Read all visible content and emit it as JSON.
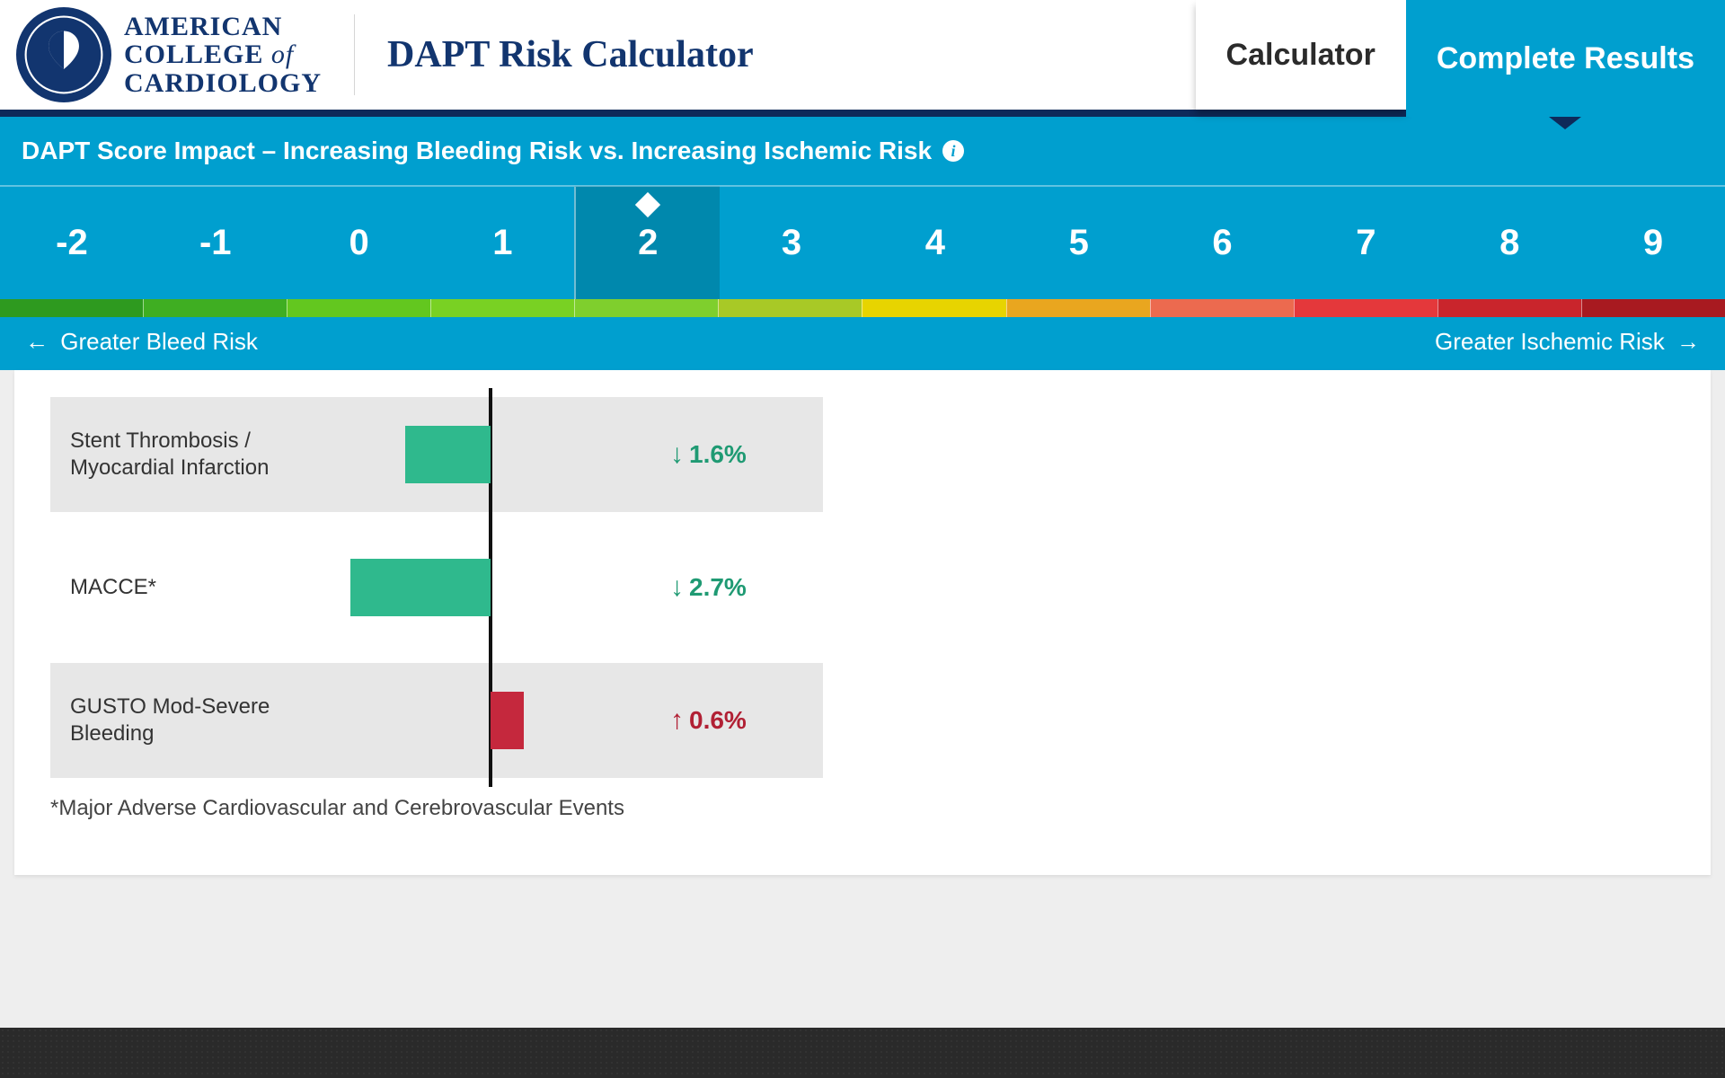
{
  "header": {
    "org_line1": "AMERICAN",
    "org_line2a": "COLLEGE ",
    "org_line2b": "of",
    "org_line3": "CARDIOLOGY",
    "app_title": "DAPT Risk Calculator"
  },
  "tabs": {
    "calculator": "Calculator",
    "complete_results": "Complete Results",
    "active": "complete_results"
  },
  "section": {
    "title": "DAPT Score Impact – Increasing Bleeding Risk vs. Increasing Ischemic Risk"
  },
  "scale": {
    "values": [
      "-2",
      "-1",
      "0",
      "1",
      "2",
      "3",
      "4",
      "5",
      "6",
      "7",
      "8",
      "9"
    ],
    "selected_index": 4,
    "gradient_colors": [
      "#2e9a1f",
      "#3fae22",
      "#63c71f",
      "#79d123",
      "#7fcf2d",
      "#a8c926",
      "#e7d400",
      "#e9a61f",
      "#ec6a4f",
      "#e4383b",
      "#c9252c",
      "#a81a20"
    ],
    "legend_left": "Greater Bleed Risk",
    "legend_right": "Greater Ischemic Risk"
  },
  "chart": {
    "axis_center_pct": 50,
    "bar_color_decrease": "#2fb98d",
    "bar_color_increase": "#c5283d",
    "rows": [
      {
        "label": "Stent Thrombosis / Myocardial Infarction",
        "value_text": "1.6%",
        "direction": "down",
        "bar_width_pct": 28
      },
      {
        "label": "MACCE*",
        "value_text": "2.7%",
        "direction": "down",
        "bar_width_pct": 46
      },
      {
        "label": "GUSTO Mod-Severe Bleeding",
        "value_text": "0.6%",
        "direction": "up",
        "bar_width_pct": 11
      }
    ],
    "footnote": "*Major Adverse Cardiovascular and Cerebrovascular Events"
  }
}
